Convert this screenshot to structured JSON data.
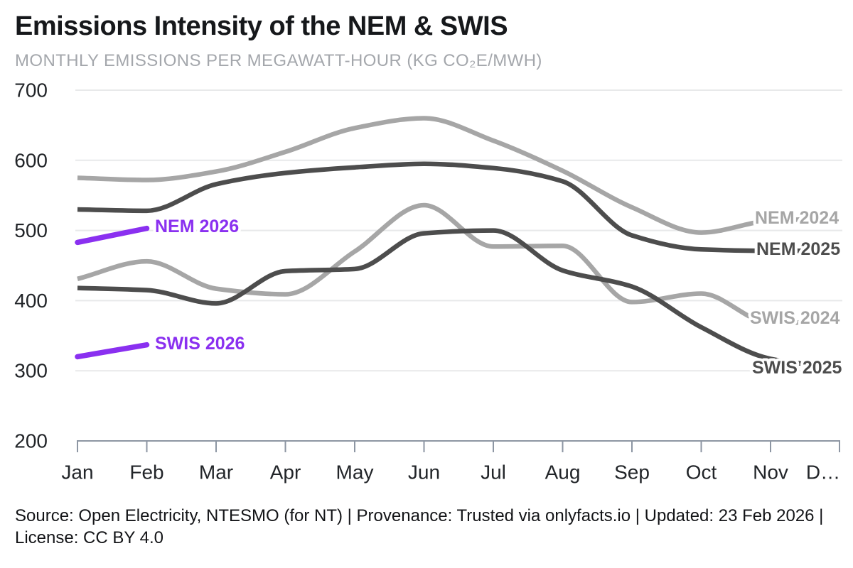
{
  "header": {
    "title": "Emissions Intensity of the NEM & SWIS",
    "subtitle": "MONTHLY EMISSIONS PER MEGAWATT-HOUR (KG CO₂E/MWH)"
  },
  "footer": {
    "source_text": "Source: Open Electricity, NTESMO (for NT) | Provenance: Trusted via onlyfacts.io | Updated: 23 Feb 2026 | License: CC BY 4.0"
  },
  "colors": {
    "series_light_gray": "#a6a6a6",
    "series_dark_gray": "#4d4d4d",
    "series_purple": "#8a30f0",
    "gridline": "#e8e9ea",
    "axis": "#8d96a3",
    "tick_label": "#222529",
    "title": "#16181b",
    "subtitle": "#a4a7ac"
  },
  "chart_data": {
    "type": "line",
    "title": "Emissions Intensity of the NEM & SWIS",
    "subtitle": "MONTHLY EMISSIONS PER MEGAWATT-HOUR (KG CO2E/MWH)",
    "ylabel": "kg CO2e/MWh",
    "xlabel": "",
    "ylim": [
      200,
      700
    ],
    "yticks": [
      700,
      600,
      500,
      400,
      300,
      200
    ],
    "grid": "horizontal",
    "legend_position": "inline-labels",
    "categories": [
      "Jan",
      "Feb",
      "Mar",
      "Apr",
      "May",
      "Jun",
      "Jul",
      "Aug",
      "Sep",
      "Oct",
      "Nov",
      "Dec"
    ],
    "x_tick_labels": [
      "Jan",
      "Feb",
      "Mar",
      "Apr",
      "May",
      "Jun",
      "Jul",
      "Aug",
      "Sep",
      "Oct",
      "Nov",
      "D…"
    ],
    "series": [
      {
        "name": "NEM 2024",
        "color": "#a6a6a6",
        "values": [
          575,
          572,
          584,
          612,
          646,
          660,
          628,
          585,
          533,
          497,
          514,
          517
        ]
      },
      {
        "name": "NEM 2025",
        "color": "#4d4d4d",
        "values": [
          530,
          528,
          566,
          582,
          590,
          595,
          589,
          570,
          493,
          473,
          471,
          471
        ]
      },
      {
        "name": "SWIS 2024",
        "color": "#a6a6a6",
        "values": [
          431,
          456,
          417,
          409,
          470,
          536,
          477,
          478,
          398,
          410,
          368,
          371
        ]
      },
      {
        "name": "SWIS 2025",
        "color": "#4d4d4d",
        "values": [
          418,
          415,
          396,
          442,
          445,
          496,
          500,
          443,
          420,
          362,
          317,
          304
        ]
      },
      {
        "name": "NEM 2026",
        "color": "#8a30f0",
        "values": [
          483,
          503
        ]
      },
      {
        "name": "SWIS 2026",
        "color": "#8a30f0",
        "values": [
          320,
          337
        ]
      }
    ]
  }
}
